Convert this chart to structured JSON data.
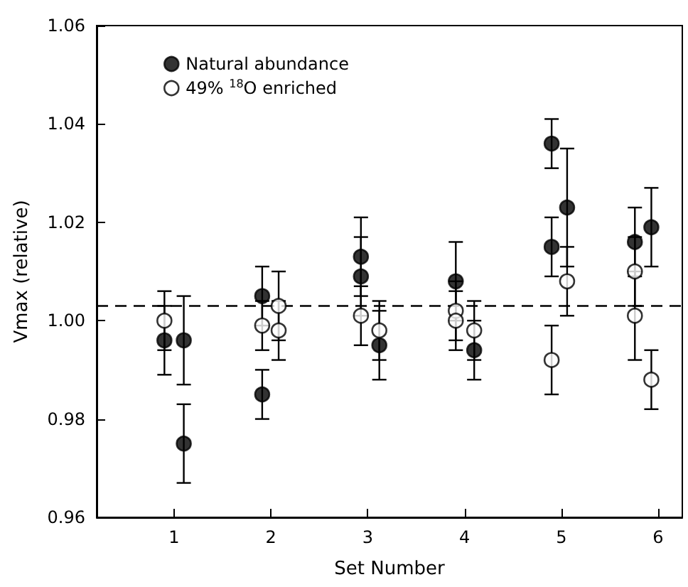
{
  "chart_data": {
    "type": "scatter",
    "xlabel": "Set Number",
    "ylabel": "Vmax (relative)",
    "xlim": [
      0.2,
      6.25
    ],
    "xticks": [
      1,
      2,
      3,
      4,
      5,
      6
    ],
    "ylim": [
      0.96,
      1.06
    ],
    "yticks": [
      {
        "value": 0.96,
        "label": "0.96"
      },
      {
        "value": 0.98,
        "label": "0.98"
      },
      {
        "value": 1,
        "label": "1.00"
      },
      {
        "value": 1.02,
        "label": "1.02"
      },
      {
        "value": 1.04,
        "label": "1.04"
      },
      {
        "value": 1.06,
        "label": "1.06"
      }
    ],
    "grid": false,
    "legend": "top left",
    "marker": "circle",
    "ref_lines": [
      {
        "axis": "y",
        "value": 1.003,
        "line_style": "dashed",
        "color": "#000000"
      }
    ],
    "series": [
      {
        "name": "Natural abundance",
        "color": "#000000",
        "x": [
          0.9,
          1.1,
          1.1,
          1.91,
          1.91,
          2.93,
          2.93,
          3.12,
          3.91,
          4.1,
          4.9,
          4.9,
          5.06,
          5.76,
          5.93
        ],
        "values": [
          0.996,
          0.996,
          0.975,
          1.005,
          0.985,
          1.013,
          1.009,
          0.995,
          1.008,
          0.994,
          1.036,
          1.015,
          1.023,
          1.016,
          1.019
        ],
        "errors": [
          0.007,
          0.009,
          0.008,
          0.006,
          0.005,
          0.008,
          0.008,
          0.007,
          0.008,
          0.006,
          0.005,
          0.006,
          0.012,
          0.007,
          0.008
        ]
      },
      {
        "name": "49% $^{18}$O enriched",
        "color": "#ffffff",
        "x": [
          0.9,
          1.91,
          2.08,
          2.08,
          2.93,
          3.12,
          3.91,
          3.91,
          4.1,
          4.9,
          5.06,
          5.76,
          5.76,
          5.93
        ],
        "values": [
          1.0,
          0.999,
          1.003,
          0.998,
          1.001,
          0.998,
          1.002,
          1.0,
          0.998,
          0.992,
          1.008,
          1.01,
          1.001,
          0.988
        ],
        "errors": [
          0.006,
          0.005,
          0.007,
          0.006,
          0.006,
          0.006,
          0.006,
          0.006,
          0.006,
          0.007,
          0.007,
          0.007,
          0.009,
          0.006
        ]
      }
    ]
  }
}
